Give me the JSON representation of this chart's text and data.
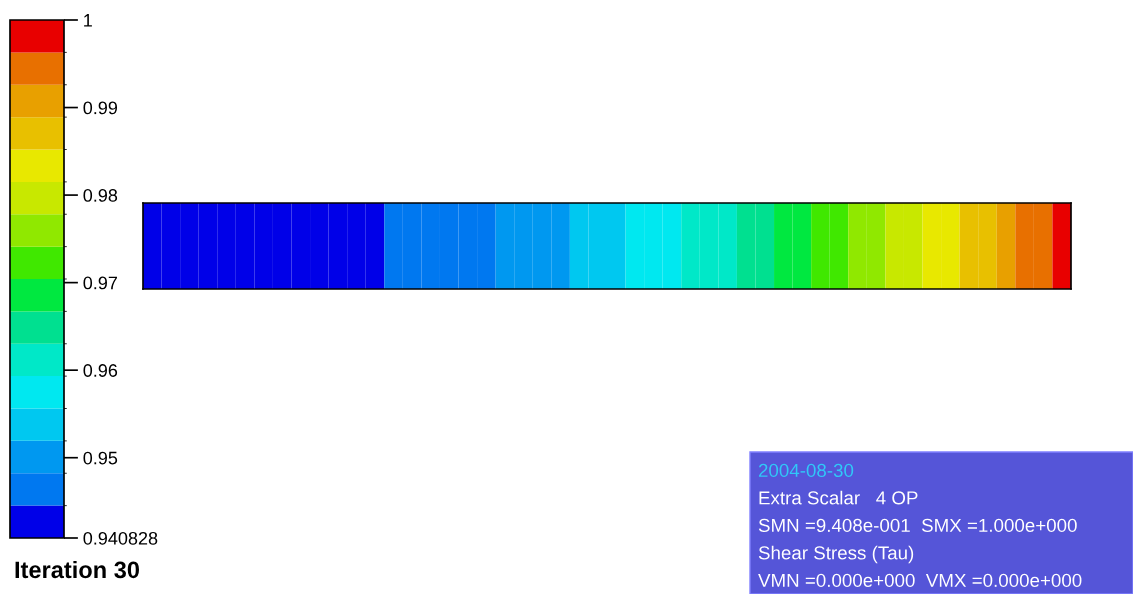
{
  "chart_data": {
    "type": "heatmap",
    "title": "Iteration 30",
    "categories": [
      null,
      null,
      null,
      null,
      null,
      null,
      null,
      null,
      null,
      null,
      null,
      null,
      null,
      null,
      null,
      null,
      null,
      null,
      null,
      null,
      null,
      null,
      null,
      null,
      null,
      null,
      null,
      null,
      null,
      null,
      null,
      null,
      null,
      null,
      null,
      null,
      null,
      null,
      null,
      null,
      null,
      null,
      null,
      null,
      null,
      null,
      null,
      null,
      null,
      null
    ],
    "y_categories": [
      null
    ],
    "cells": [
      [
        0.9427,
        0.9427,
        0.9427,
        0.9427,
        0.9427,
        0.9427,
        0.9427,
        0.9427,
        0.9427,
        0.9427,
        0.9427,
        0.9427,
        0.9427,
        0.9464,
        0.9464,
        0.9464,
        0.9464,
        0.9464,
        0.9464,
        0.9501,
        0.9501,
        0.9501,
        0.9501,
        0.9538,
        0.9538,
        0.9538,
        0.9575,
        0.9575,
        0.9575,
        0.9612,
        0.9612,
        0.9612,
        0.9649,
        0.9649,
        0.9686,
        0.9686,
        0.9723,
        0.9723,
        0.976,
        0.976,
        0.9797,
        0.9797,
        0.9834,
        0.9834,
        0.9871,
        0.9871,
        0.9908,
        0.9945,
        0.9945,
        0.9982
      ]
    ],
    "colors": [
      "#0000e8",
      "#0078f0",
      "#0098f0",
      "#00c8f0",
      "#00e8f0",
      "#00e8c8",
      "#00e090",
      "#00e840",
      "#40e800",
      "#90e800",
      "#c8e800",
      "#e8e800",
      "#e8c000",
      "#e8a000",
      "#e87000",
      "#e80000"
    ],
    "clim": [
      0.940828,
      1
    ],
    "cticks": [
      0.940828,
      0.95,
      0.96,
      0.97,
      0.98,
      0.99,
      1
    ],
    "annotations": [
      "2004-08-30",
      "Extra Scalar   4 OP",
      "SMN =9.408e-001  SMX =1.000e+000",
      "Shear Stress (Tau)",
      "VMN =0.000e+000  VMX =0.000e+000"
    ]
  }
}
